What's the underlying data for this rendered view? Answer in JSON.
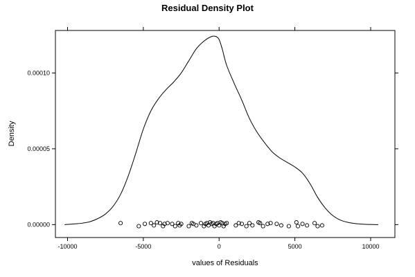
{
  "chart_data": {
    "type": "line",
    "title": "Residual Density Plot",
    "xlabel": "values of Residuals",
    "ylabel": "Density",
    "xlim": [
      -10800,
      11600
    ],
    "ylim": [
      -8.5e-06,
      0.000128
    ],
    "x_ticks": [
      -10000,
      -5000,
      0,
      5000,
      10000
    ],
    "x_tick_labels": [
      "-10000",
      "-5000",
      "0",
      "5000",
      "10000"
    ],
    "y_ticks": [
      0,
      5e-05,
      0.0001
    ],
    "y_tick_labels": [
      "0.00000",
      "0.00005",
      "0.00010"
    ],
    "grid": false,
    "series": [
      {
        "style": "line",
        "x": [
          -10200,
          -9500,
          -9000,
          -8500,
          -8000,
          -7500,
          -7000,
          -6500,
          -6000,
          -5500,
          -5000,
          -4500,
          -4000,
          -3500,
          -3000,
          -2500,
          -2000,
          -1500,
          -1000,
          -500,
          -200,
          0,
          200,
          500,
          1000,
          1500,
          2000,
          2500,
          3000,
          3500,
          4000,
          4500,
          5000,
          5500,
          6000,
          6500,
          7000,
          7500,
          8000,
          8500,
          9000,
          9500,
          10000,
          10500
        ],
        "y": [
          0.0,
          5e-07,
          1e-06,
          2e-06,
          4e-06,
          7e-06,
          1.2e-05,
          2e-05,
          3.2e-05,
          4.7e-05,
          6.3e-05,
          7.5e-05,
          8.3e-05,
          8.9e-05,
          9.4e-05,
          0.0001,
          0.000108,
          0.000116,
          0.000121,
          0.000124,
          0.000124,
          0.000122,
          0.000116,
          0.000105,
          9.3e-05,
          8.2e-05,
          7e-05,
          6.1e-05,
          5.4e-05,
          4.8e-05,
          4.4e-05,
          4.1e-05,
          3.8e-05,
          3.4e-05,
          2.7e-05,
          1.8e-05,
          1.1e-05,
          6e-06,
          3e-06,
          1.5e-06,
          7e-07,
          3e-07,
          1e-07,
          0.0
        ]
      },
      {
        "style": "points",
        "x": [
          -6500,
          -5300,
          -4900,
          -4500,
          -4300,
          -4100,
          -3900,
          -3700,
          -3600,
          -3400,
          -3100,
          -2900,
          -2700,
          -2600,
          -2500,
          -2000,
          -1800,
          -1700,
          -1500,
          -1200,
          -1000,
          -900,
          -800,
          -700,
          -600,
          -500,
          -400,
          -300,
          -200,
          -100,
          0,
          100,
          200,
          300,
          400,
          500,
          1100,
          1300,
          1500,
          1800,
          2000,
          2200,
          2600,
          2700,
          2900,
          3200,
          3400,
          3800,
          4100,
          4600,
          5100,
          5200,
          5500,
          5800,
          6300,
          6500,
          6800
        ],
        "y": [
          1e-06,
          -1e-06,
          5e-07,
          1e-06,
          -5e-07,
          1.5e-06,
          1e-06,
          -1e-06,
          5e-07,
          1e-06,
          5e-07,
          -1e-06,
          1e-06,
          -5e-07,
          5e-07,
          -1e-06,
          1e-06,
          5e-07,
          -5e-07,
          1e-06,
          -1e-06,
          5e-07,
          1e-06,
          -5e-07,
          1.5e-06,
          5e-07,
          1e-06,
          -1e-06,
          5e-07,
          1e-06,
          -5e-07,
          1.5e-06,
          1e-06,
          -1e-06,
          5e-07,
          1e-06,
          -5e-07,
          1e-06,
          5e-07,
          -1e-06,
          1e-06,
          -5e-07,
          1.5e-06,
          1e-06,
          -1e-06,
          5e-07,
          1e-06,
          5e-07,
          -5e-07,
          -1e-06,
          1.5e-06,
          -1e-06,
          5e-07,
          -5e-07,
          1e-06,
          -1e-06,
          -5e-07
        ]
      }
    ]
  }
}
